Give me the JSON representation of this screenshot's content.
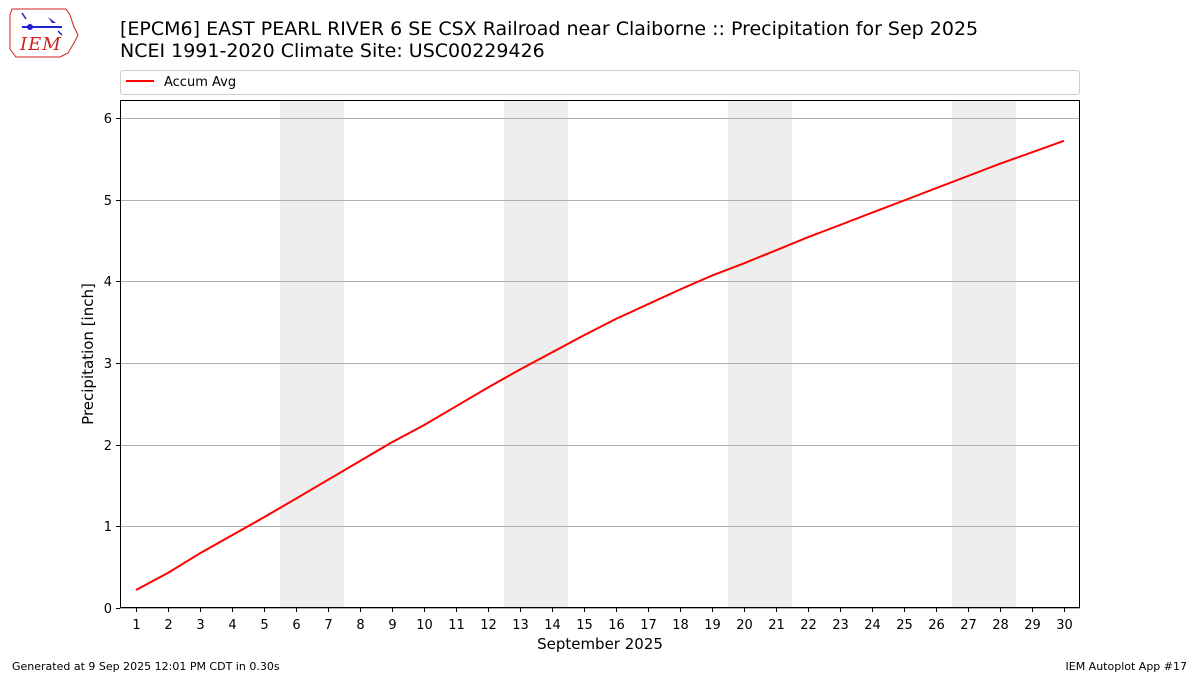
{
  "header": {
    "title_line1": "[EPCM6] EAST PEARL RIVER 6 SE CSX Railroad near Claiborne :: Precipitation for Sep 2025",
    "title_line2": "NCEI 1991-2020 Climate Site: USC00229426",
    "logo_text": "IEM"
  },
  "footer": {
    "left": "Generated at 9 Sep 2025 12:01 PM CDT in 0.30s",
    "right": "IEM Autoplot App #17"
  },
  "colors": {
    "series": "#ff0000",
    "weekend_shade": "#eeeeee",
    "grid": "#b0b0b0",
    "logo": "#cc2222"
  },
  "chart_data": {
    "type": "line",
    "title": "[EPCM6] EAST PEARL RIVER 6 SE CSX Railroad near Claiborne :: Precipitation for Sep 2025",
    "subtitle": "NCEI 1991-2020 Climate Site: USC00229426",
    "xlabel": "September 2025",
    "ylabel": "Precipitation [inch]",
    "x": [
      1,
      2,
      3,
      4,
      5,
      6,
      7,
      8,
      9,
      10,
      11,
      12,
      13,
      14,
      15,
      16,
      17,
      18,
      19,
      20,
      21,
      22,
      23,
      24,
      25,
      26,
      27,
      28,
      29,
      30
    ],
    "series": [
      {
        "name": "Accum Avg",
        "values": [
          0.22,
          0.43,
          0.67,
          0.89,
          1.11,
          1.34,
          1.57,
          1.8,
          2.03,
          2.24,
          2.47,
          2.7,
          2.92,
          3.13,
          3.34,
          3.54,
          3.72,
          3.9,
          4.07,
          4.22,
          4.38,
          4.54,
          4.69,
          4.84,
          4.99,
          5.14,
          5.29,
          5.44,
          5.58,
          5.72
        ]
      }
    ],
    "shaded_ranges": [
      [
        6,
        7
      ],
      [
        13,
        14
      ],
      [
        20,
        21
      ],
      [
        27,
        28
      ]
    ],
    "xlim": [
      0.5,
      30.5
    ],
    "ylim": [
      0,
      6.22
    ],
    "yticks": [
      0,
      1,
      2,
      3,
      4,
      5,
      6
    ],
    "grid": "horizontal",
    "legend_position": "top"
  }
}
